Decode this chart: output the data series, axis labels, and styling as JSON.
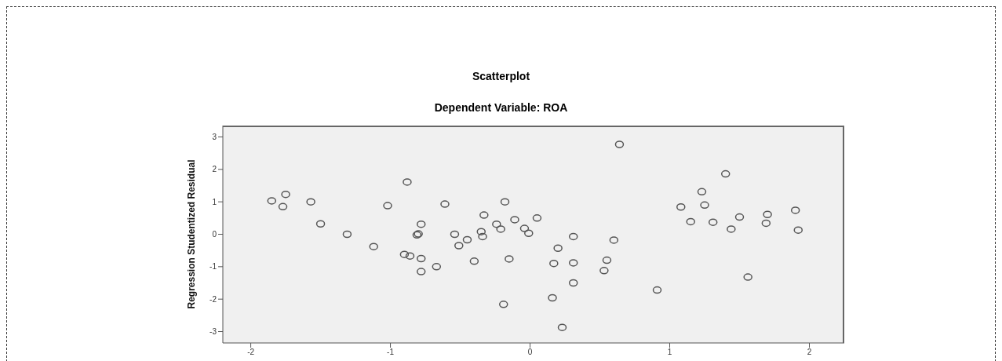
{
  "chart_data": {
    "type": "scatter",
    "title": "Scatterplot",
    "subtitle": "Dependent Variable: ROA",
    "ylabel": "Regression Studentized Residual",
    "x": [
      -1.85,
      -1.75,
      -1.77,
      -1.57,
      -1.5,
      -1.31,
      -1.12,
      -1.02,
      -0.88,
      -0.9,
      -0.86,
      -0.81,
      -0.8,
      -0.78,
      -0.78,
      -0.78,
      -0.67,
      -0.61,
      -0.54,
      -0.51,
      -0.45,
      -0.4,
      -0.35,
      -0.34,
      -0.33,
      -0.24,
      -0.21,
      -0.18,
      -0.19,
      -0.15,
      -0.11,
      -0.04,
      -0.01,
      0.05,
      0.64,
      0.31,
      0.2,
      0.17,
      0.31,
      0.31,
      0.16,
      0.23,
      0.6,
      0.55,
      0.53,
      0.91,
      1.08,
      1.15,
      1.23,
      1.25,
      1.31,
      1.4,
      1.44,
      1.5,
      1.56,
      1.7,
      1.69,
      1.9,
      1.92
    ],
    "values": [
      1.03,
      1.23,
      0.85,
      1.0,
      0.32,
      0.0,
      -0.38,
      0.88,
      1.61,
      -0.62,
      -0.67,
      -0.02,
      0.01,
      0.31,
      -0.75,
      -1.15,
      -1.0,
      0.93,
      0.0,
      -0.35,
      -0.17,
      -0.83,
      0.08,
      -0.07,
      0.59,
      0.31,
      0.16,
      1.0,
      -2.16,
      -0.76,
      0.45,
      0.18,
      0.03,
      0.5,
      2.77,
      -0.07,
      -0.43,
      -0.9,
      -0.88,
      -1.5,
      -1.96,
      -2.87,
      -0.18,
      -0.8,
      -1.12,
      -1.72,
      0.84,
      0.39,
      1.31,
      0.9,
      0.37,
      1.86,
      0.16,
      0.53,
      -1.32,
      0.61,
      0.34,
      0.74,
      0.13
    ],
    "color": "#555555",
    "marker": "circle",
    "grid": false,
    "xlim": [
      -2.2,
      2.25
    ],
    "xticks": [
      -2,
      -1,
      0,
      1,
      2
    ],
    "ylim": [
      -3.35,
      3.35
    ],
    "yticks": [
      -3,
      -2,
      -1,
      0,
      1,
      2,
      3
    ]
  }
}
